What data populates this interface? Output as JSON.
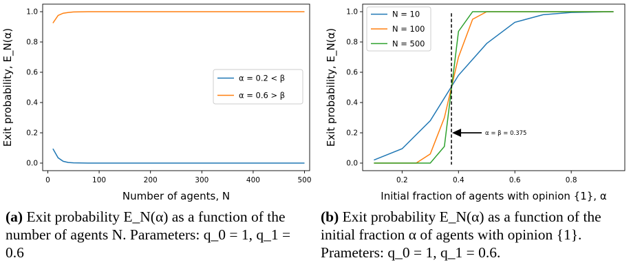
{
  "chart_data": [
    {
      "type": "line",
      "xlabel": "Number of agents, N",
      "ylabel": "Exit probability, E_N(α)",
      "xlim": [
        -10,
        510
      ],
      "ylim": [
        -0.05,
        1.05
      ],
      "xticks": [
        "0",
        "100",
        "200",
        "300",
        "400",
        "500"
      ],
      "yticks": [
        "0.0",
        "0.2",
        "0.4",
        "0.6",
        "0.8",
        "1.0"
      ],
      "legend_position": "center-right",
      "grid": false,
      "series": [
        {
          "name": "α = 0.2 < β",
          "color": "#1f77b4",
          "x": [
            10,
            20,
            30,
            40,
            50,
            60,
            80,
            100,
            150,
            200,
            300,
            400,
            500
          ],
          "y": [
            0.095,
            0.035,
            0.012,
            0.004,
            0.002,
            0.001,
            0.0,
            0.0,
            0.0,
            0.0,
            0.0,
            0.0,
            0.0
          ]
        },
        {
          "name": "α = 0.6 > β",
          "color": "#ff7f0e",
          "x": [
            10,
            20,
            30,
            40,
            50,
            60,
            80,
            100,
            150,
            200,
            300,
            400,
            500
          ],
          "y": [
            0.925,
            0.975,
            0.99,
            0.995,
            0.998,
            0.999,
            1.0,
            1.0,
            1.0,
            1.0,
            1.0,
            1.0,
            1.0
          ]
        }
      ]
    },
    {
      "type": "line",
      "xlabel": "Initial fraction of agents with opinion {1}, α",
      "ylabel": "Exit probability, E_N(α)",
      "xlim": [
        0.06,
        0.99
      ],
      "ylim": [
        -0.05,
        1.05
      ],
      "xticks": [
        "0.2",
        "0.4",
        "0.6",
        "0.8"
      ],
      "yticks": [
        "0.0",
        "0.2",
        "0.4",
        "0.6",
        "0.8",
        "1.0"
      ],
      "legend_position": "top-left",
      "grid": false,
      "vline": 0.375,
      "annotation": "α = β = 0.375",
      "series": [
        {
          "name": "N = 10",
          "color": "#1f77b4",
          "x": [
            0.1,
            0.2,
            0.3,
            0.4,
            0.5,
            0.6,
            0.7,
            0.8,
            0.95
          ],
          "y": [
            0.02,
            0.095,
            0.28,
            0.58,
            0.79,
            0.93,
            0.98,
            0.995,
            1.0
          ]
        },
        {
          "name": "N = 100",
          "color": "#ff7f0e",
          "x": [
            0.1,
            0.25,
            0.3,
            0.35,
            0.4,
            0.45,
            0.5,
            0.6,
            0.95
          ],
          "y": [
            0.0,
            0.0,
            0.06,
            0.3,
            0.7,
            0.95,
            1.0,
            1.0,
            1.0
          ]
        },
        {
          "name": "N = 500",
          "color": "#2ca02c",
          "x": [
            0.1,
            0.3,
            0.35,
            0.4,
            0.45,
            0.5,
            0.95
          ],
          "y": [
            0.0,
            0.0,
            0.11,
            0.87,
            1.0,
            1.0,
            1.0
          ]
        }
      ]
    }
  ],
  "captions": {
    "a_label": "(a)",
    "a_text": "Exit probability E_N(α) as a function of the number of agents N. Parameters: q_0 = 1, q_1 = 0.6",
    "b_label": "(b)",
    "b_text": "Exit probability E_N(α) as a function of the initial fraction α of agents with opinion {1}. Prameters: q_0 = 1, q_1 = 0.6."
  }
}
